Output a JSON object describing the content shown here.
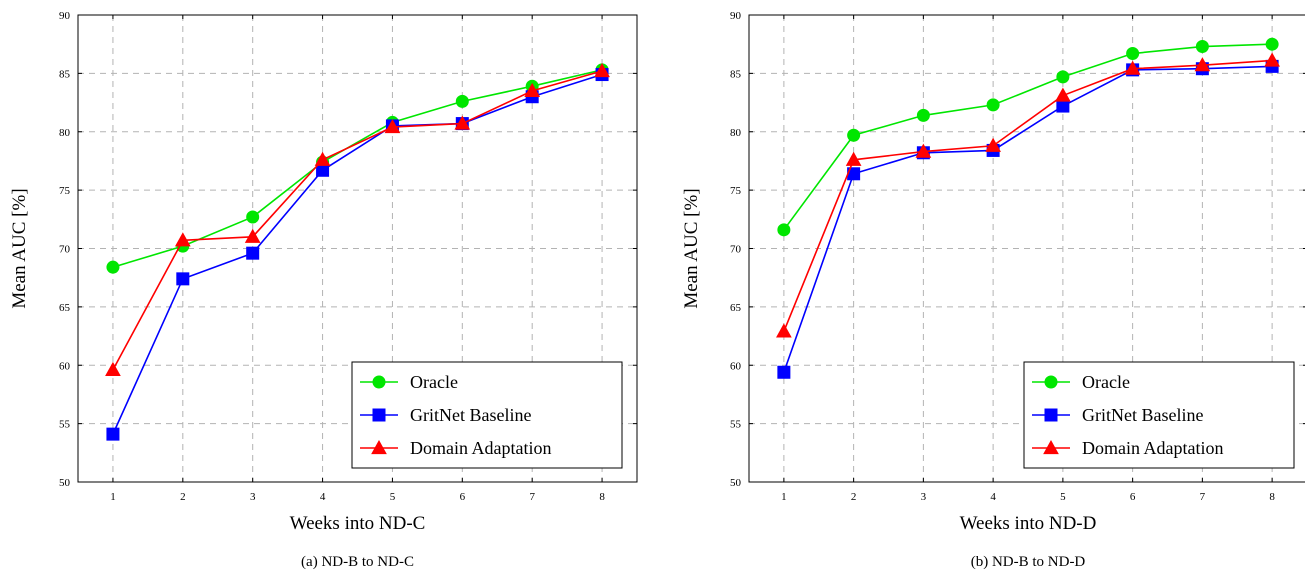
{
  "chart_data": [
    {
      "type": "line",
      "caption": "(a) ND-B to ND-C",
      "xlabel": "Weeks into ND-C",
      "ylabel": "Mean AUC [%]",
      "x": [
        1,
        2,
        3,
        4,
        5,
        6,
        7,
        8
      ],
      "xlim": [
        0.5,
        8.5
      ],
      "ylim": [
        50,
        90
      ],
      "yticks": [
        50,
        55,
        60,
        65,
        70,
        75,
        80,
        85,
        90
      ],
      "grid": true,
      "legend_position": "bottom-right",
      "series": [
        {
          "name": "Oracle",
          "color": "#00e600",
          "marker": "circle",
          "values": [
            68.4,
            70.2,
            72.7,
            77.4,
            80.8,
            82.6,
            83.9,
            85.3
          ]
        },
        {
          "name": "GritNet Baseline",
          "color": "#0000ff",
          "marker": "square",
          "values": [
            54.1,
            67.4,
            69.6,
            76.7,
            80.5,
            80.7,
            83.0,
            84.9
          ]
        },
        {
          "name": "Domain Adaptation",
          "color": "#ff0000",
          "marker": "triangle",
          "values": [
            59.6,
            70.7,
            71.0,
            77.6,
            80.4,
            80.7,
            83.5,
            85.2
          ]
        }
      ]
    },
    {
      "type": "line",
      "caption": "(b) ND-B to ND-D",
      "xlabel": "Weeks into ND-D",
      "ylabel": "Mean AUC [%]",
      "x": [
        1,
        2,
        3,
        4,
        5,
        6,
        7,
        8
      ],
      "xlim": [
        0.5,
        8.5
      ],
      "ylim": [
        50,
        90
      ],
      "yticks": [
        50,
        55,
        60,
        65,
        70,
        75,
        80,
        85,
        90
      ],
      "grid": true,
      "legend_position": "bottom-right",
      "series": [
        {
          "name": "Oracle",
          "color": "#00e600",
          "marker": "circle",
          "values": [
            71.6,
            79.7,
            81.4,
            82.3,
            84.7,
            86.7,
            87.3,
            87.5
          ]
        },
        {
          "name": "GritNet Baseline",
          "color": "#0000ff",
          "marker": "square",
          "values": [
            59.4,
            76.4,
            78.2,
            78.4,
            82.2,
            85.3,
            85.4,
            85.6
          ]
        },
        {
          "name": "Domain Adaptation",
          "color": "#ff0000",
          "marker": "triangle",
          "values": [
            62.9,
            77.6,
            78.3,
            78.8,
            83.1,
            85.4,
            85.7,
            86.1
          ]
        }
      ]
    }
  ]
}
